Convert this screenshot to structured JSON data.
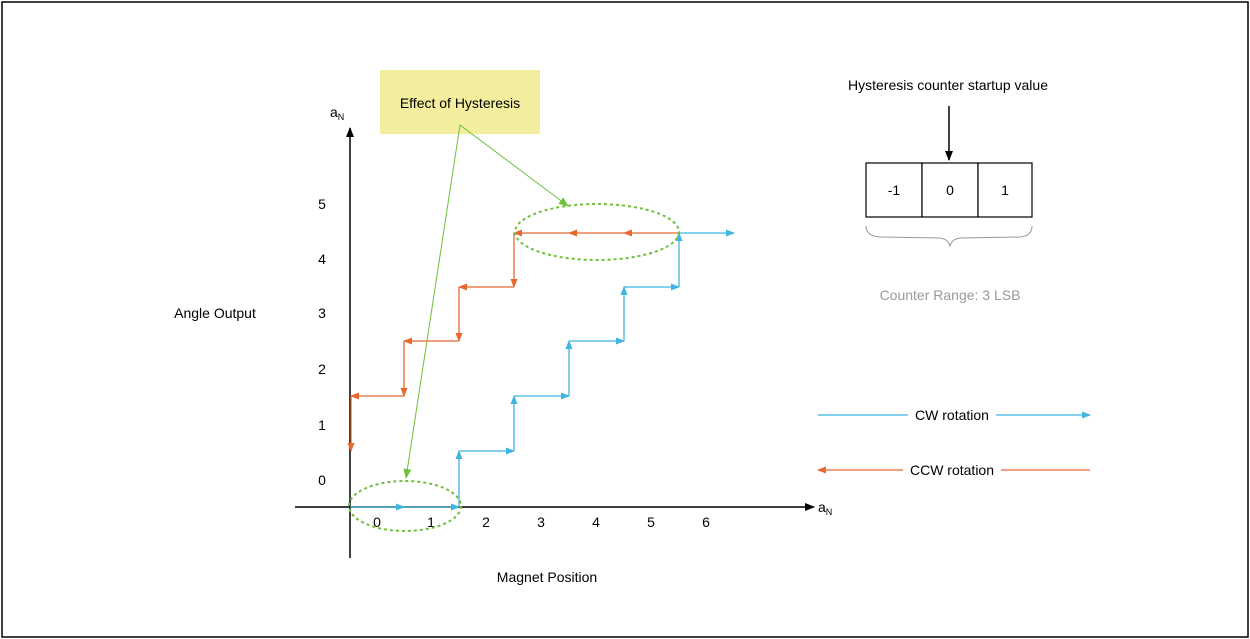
{
  "callout": {
    "label": "Effect of Hysteresis",
    "fill": "#f3ee9d"
  },
  "y_axis": {
    "var": "a",
    "sub": "N",
    "ticks": [
      "0",
      "1",
      "2",
      "3",
      "4",
      "5"
    ],
    "title": "Angle Output"
  },
  "x_axis": {
    "var": "a",
    "sub": "N",
    "ticks": [
      "0",
      "1",
      "2",
      "3",
      "4",
      "5",
      "6"
    ],
    "title": "Magnet Position"
  },
  "counter": {
    "heading": "Hysteresis counter startup value",
    "cells": [
      "-1",
      "0",
      "1"
    ],
    "range_label": "Counter Range: 3 LSB"
  },
  "legend": {
    "cw": {
      "label": "CW rotation",
      "color": "#3fb4e0"
    },
    "ccw": {
      "label": "CCW rotation",
      "color": "#e8672d"
    }
  },
  "colors": {
    "highlight": "#6fbf3c",
    "axis": "#000000"
  }
}
